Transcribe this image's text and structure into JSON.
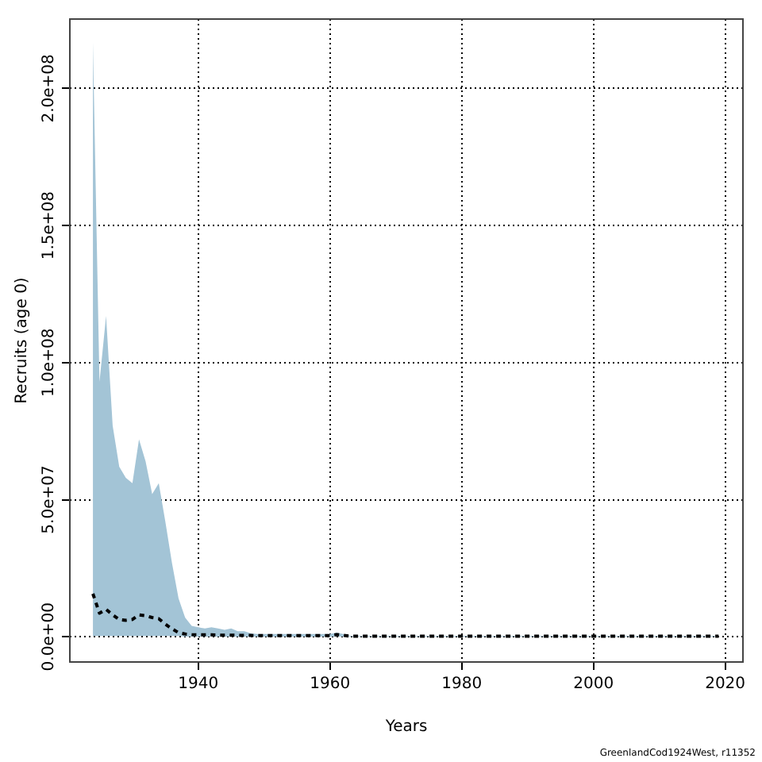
{
  "chart_data": {
    "type": "line",
    "xlabel": "Years",
    "ylabel": "Recruits (age 0)",
    "x": [
      1924,
      1925,
      1926,
      1927,
      1928,
      1929,
      1930,
      1931,
      1932,
      1933,
      1934,
      1935,
      1936,
      1937,
      1938,
      1939,
      1940,
      1941,
      1942,
      1943,
      1944,
      1945,
      1946,
      1947,
      1948,
      1949,
      1950,
      1951,
      1952,
      1953,
      1954,
      1955,
      1956,
      1957,
      1958,
      1959,
      1960,
      1961,
      1962,
      1963,
      1964,
      1965,
      1966,
      1967,
      1968,
      1969,
      1970,
      1971,
      1972,
      1973,
      1974,
      1975,
      1976,
      1977,
      1978,
      1979,
      1980,
      1981,
      1982,
      1983,
      1984,
      1985,
      1986,
      1987,
      1988,
      1989,
      1990,
      1991,
      1992,
      1993,
      1994,
      1995,
      1996,
      1997,
      1998,
      1999,
      2000,
      2001,
      2002,
      2003,
      2004,
      2005,
      2006,
      2007,
      2008,
      2009,
      2010,
      2011,
      2012,
      2013,
      2014,
      2015,
      2016,
      2017,
      2018,
      2019
    ],
    "series": [
      {
        "color": "#000000",
        "line_style": "dashed",
        "values": [
          15700000.0,
          8600000.0,
          10000000.0,
          8000000.0,
          6300000.0,
          6000000.0,
          6300000.0,
          8000000.0,
          7700000.0,
          7000000.0,
          6600000.0,
          4600000.0,
          2900000.0,
          1500000.0,
          1000000.0,
          800000.0,
          700000.0,
          700000.0,
          700000.0,
          600000.0,
          600000.0,
          600000.0,
          500000.0,
          500000.0,
          500000.0,
          400000.0,
          400000.0,
          400000.0,
          400000.0,
          400000.0,
          400000.0,
          400000.0,
          400000.0,
          400000.0,
          400000.0,
          400000.0,
          400000.0,
          800000.0,
          500000.0,
          200000.0,
          200000.0,
          200000.0,
          200000.0,
          200000.0,
          200000.0,
          200000.0,
          200000.0,
          200000.0,
          200000.0,
          200000.0,
          200000.0,
          200000.0,
          200000.0,
          200000.0,
          200000.0,
          200000.0,
          200000.0,
          200000.0,
          200000.0,
          200000.0,
          200000.0,
          200000.0,
          200000.0,
          200000.0,
          200000.0,
          200000.0,
          200000.0,
          200000.0,
          200000.0,
          200000.0,
          200000.0,
          200000.0,
          200000.0,
          200000.0,
          200000.0,
          200000.0,
          200000.0,
          200000.0,
          200000.0,
          200000.0,
          200000.0,
          200000.0,
          200000.0,
          200000.0,
          200000.0,
          200000.0,
          200000.0,
          200000.0,
          200000.0,
          200000.0,
          200000.0,
          200000.0,
          200000.0,
          200000.0,
          200000.0,
          200000.0
        ],
        "lower": [
          300000.0,
          300000.0,
          300000.0,
          300000.0,
          300000.0,
          300000.0,
          300000.0,
          300000.0,
          300000.0,
          300000.0,
          300000.0,
          300000.0,
          300000.0,
          300000.0,
          100000.0,
          100000.0,
          100000.0,
          100000.0,
          100000.0,
          100000.0,
          100000.0,
          100000.0,
          100000.0,
          100000.0,
          100000.0,
          100000.0,
          100000.0,
          100000.0,
          100000.0,
          100000.0,
          100000.0,
          100000.0,
          100000.0,
          100000.0,
          100000.0,
          100000.0,
          100000.0,
          100000.0,
          100000.0,
          50000.0,
          50000.0,
          50000.0,
          50000.0,
          50000.0,
          50000.0,
          50000.0,
          50000.0,
          50000.0,
          50000.0,
          50000.0,
          50000.0,
          50000.0,
          50000.0,
          50000.0,
          50000.0,
          50000.0,
          50000.0,
          50000.0,
          50000.0,
          50000.0,
          50000.0,
          50000.0,
          50000.0,
          50000.0,
          50000.0,
          50000.0,
          50000.0,
          50000.0,
          50000.0,
          50000.0,
          50000.0,
          50000.0,
          50000.0,
          50000.0,
          50000.0,
          50000.0,
          50000.0,
          50000.0,
          50000.0,
          50000.0,
          50000.0,
          50000.0,
          50000.0,
          50000.0,
          50000.0,
          50000.0,
          50000.0,
          50000.0,
          50000.0,
          50000.0,
          50000.0,
          50000.0,
          50000.0,
          50000.0,
          50000.0,
          50000.0
        ],
        "upper": [
          217000000.0,
          93000000.0,
          117000000.0,
          77000000.0,
          62000000.0,
          58000000.0,
          56000000.0,
          72000000.0,
          64000000.0,
          52000000.0,
          56000000.0,
          42000000.0,
          27000000.0,
          14000000.0,
          7000000.0,
          4000000.0,
          3500000.0,
          3000000.0,
          3500000.0,
          3000000.0,
          2500000.0,
          3000000.0,
          2000000.0,
          2000000.0,
          1200000.0,
          1000000.0,
          1000000.0,
          1000000.0,
          1000000.0,
          1000000.0,
          1000000.0,
          1000000.0,
          1000000.0,
          1000000.0,
          1000000.0,
          1000000.0,
          1000000.0,
          1500000.0,
          1000000.0,
          300000.0,
          300000.0,
          300000.0,
          300000.0,
          300000.0,
          300000.0,
          300000.0,
          300000.0,
          300000.0,
          300000.0,
          300000.0,
          300000.0,
          300000.0,
          300000.0,
          300000.0,
          300000.0,
          300000.0,
          300000.0,
          300000.0,
          300000.0,
          300000.0,
          300000.0,
          300000.0,
          300000.0,
          300000.0,
          300000.0,
          300000.0,
          300000.0,
          300000.0,
          300000.0,
          300000.0,
          300000.0,
          300000.0,
          300000.0,
          300000.0,
          300000.0,
          300000.0,
          300000.0,
          300000.0,
          300000.0,
          300000.0,
          300000.0,
          300000.0,
          300000.0,
          300000.0,
          300000.0,
          300000.0,
          300000.0,
          300000.0,
          300000.0,
          300000.0,
          300000.0,
          300000.0,
          300000.0,
          300000.0,
          300000.0,
          300000.0
        ]
      }
    ],
    "xlim": [
      1920.5,
      2022.7
    ],
    "xticks": [
      1940,
      1960,
      1980,
      2000,
      2020
    ],
    "ylim": [
      -9200000.0,
      225300000.0
    ],
    "yticks": [
      {
        "value": 0,
        "label": "0.0e+00"
      },
      {
        "value": 50000000.0,
        "label": "5.0e+07"
      },
      {
        "value": 100000000.0,
        "label": "1.0e+08"
      },
      {
        "value": 150000000.0,
        "label": "1.5e+08"
      },
      {
        "value": 200000000.0,
        "label": "2.0e+08"
      }
    ],
    "grid": true,
    "legend": false,
    "marker": "none",
    "annotations": [
      "GreenlandCod1924West, r11352"
    ]
  }
}
